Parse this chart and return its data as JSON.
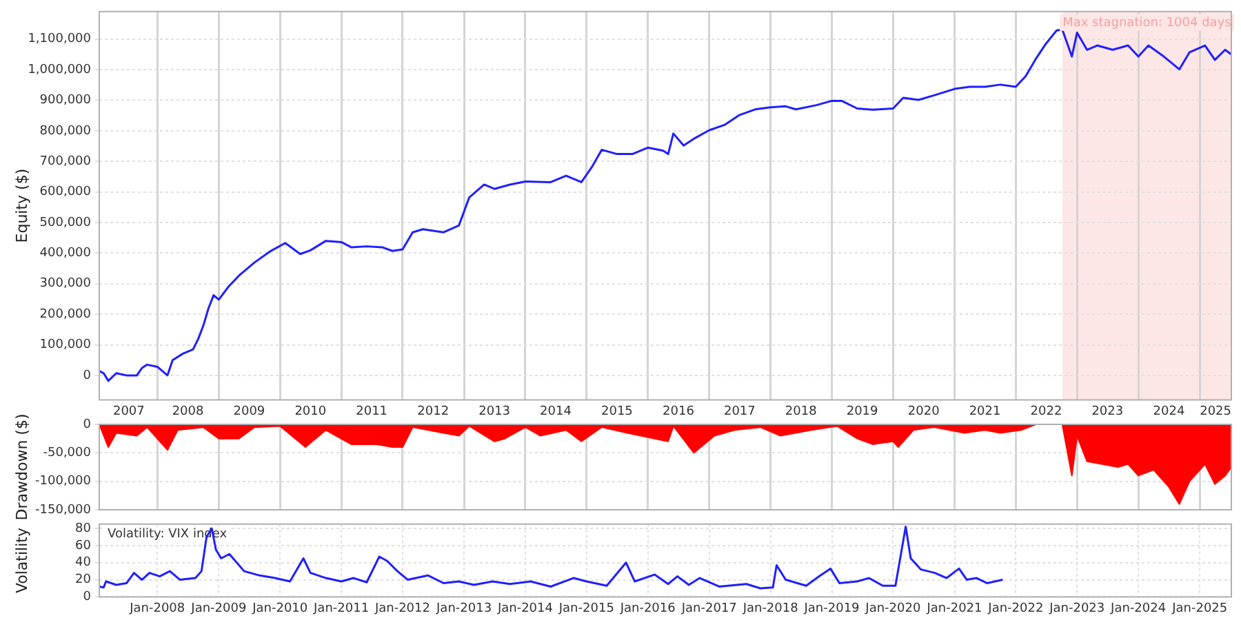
{
  "chart_data": [
    {
      "type": "line",
      "ylabel": "Equity ($)",
      "xlim": [
        "2007-01-20",
        "2025-07-08"
      ],
      "ylim": [
        -80000,
        1190000
      ],
      "yticks": [
        0,
        {
          "value": 100000,
          "label": "100,000"
        },
        {
          "value": 200000,
          "label": "200,000"
        },
        {
          "value": 300000,
          "label": "300,000"
        },
        {
          "value": 400000,
          "label": "400,000"
        },
        {
          "value": 500000,
          "label": "500,000"
        },
        {
          "value": 600000,
          "label": "600,000"
        },
        {
          "value": 700000,
          "label": "700,000"
        },
        {
          "value": 800000,
          "label": "800,000"
        },
        {
          "value": 900000,
          "label": "900,000"
        },
        {
          "value": 1000000,
          "label": "1,000,000"
        },
        {
          "value": 1100000,
          "label": "1,100,000"
        }
      ],
      "xticks": [
        {
          "value": "2007-07-15",
          "label": "2007"
        },
        {
          "value": "2008-01-01",
          "label": null
        },
        {
          "value": "2008-07-01",
          "label": "2008"
        },
        {
          "value": "2009-01-01",
          "label": null
        },
        {
          "value": "2009-07-01",
          "label": "2009"
        },
        {
          "value": "2010-01-01",
          "label": null
        },
        {
          "value": "2010-07-01",
          "label": "2010"
        },
        {
          "value": "2011-01-01",
          "label": null
        },
        {
          "value": "2011-07-01",
          "label": "2011"
        },
        {
          "value": "2012-01-01",
          "label": null
        },
        {
          "value": "2012-07-01",
          "label": "2012"
        },
        {
          "value": "2013-01-01",
          "label": null
        },
        {
          "value": "2013-07-01",
          "label": "2013"
        },
        {
          "value": "2014-01-01",
          "label": null
        },
        {
          "value": "2014-07-01",
          "label": "2014"
        },
        {
          "value": "2015-01-01",
          "label": null
        },
        {
          "value": "2015-07-01",
          "label": "2015"
        },
        {
          "value": "2016-01-01",
          "label": null
        },
        {
          "value": "2016-07-01",
          "label": "2016"
        },
        {
          "value": "2017-01-01",
          "label": null
        },
        {
          "value": "2017-07-01",
          "label": "2017"
        },
        {
          "value": "2018-01-01",
          "label": null
        },
        {
          "value": "2018-07-01",
          "label": "2018"
        },
        {
          "value": "2019-01-01",
          "label": null
        },
        {
          "value": "2019-07-01",
          "label": "2019"
        },
        {
          "value": "2020-01-01",
          "label": null
        },
        {
          "value": "2020-07-01",
          "label": "2020"
        },
        {
          "value": "2021-01-01",
          "label": null
        },
        {
          "value": "2021-07-01",
          "label": "2021"
        },
        {
          "value": "2022-01-01",
          "label": null
        },
        {
          "value": "2022-07-01",
          "label": "2022"
        },
        {
          "value": "2023-01-01",
          "label": null
        },
        {
          "value": "2023-07-01",
          "label": "2023"
        },
        {
          "value": "2024-01-01",
          "label": null
        },
        {
          "value": "2024-07-01",
          "label": "2024"
        },
        {
          "value": "2025-01-01",
          "label": null
        },
        {
          "value": "2025-04-05",
          "label": "2025"
        }
      ],
      "grid": true,
      "legend": false,
      "marker": "none",
      "line_style": "solid",
      "bands": [
        {
          "axis": "x",
          "from": "2022-10-05",
          "to": "2025-07-08",
          "label": "Max stagnation: 1004 days",
          "color": "#fde6e6"
        }
      ],
      "x": [
        "2007-01-20",
        "2007-02-15",
        "2007-03-15",
        "2007-05-01",
        "2007-07-01",
        "2007-09-01",
        "2007-10-01",
        "2007-11-01",
        "2008-01-01",
        "2008-03-01",
        "2008-04-01",
        "2008-06-01",
        "2008-08-01",
        "2008-09-01",
        "2008-10-01",
        "2008-11-01",
        "2008-12-01",
        "2009-01-01",
        "2009-03-01",
        "2009-05-01",
        "2009-08-01",
        "2009-11-01",
        "2010-02-01",
        "2010-05-01",
        "2010-07-01",
        "2010-10-01",
        "2011-01-01",
        "2011-03-01",
        "2011-06-01",
        "2011-09-01",
        "2011-11-01",
        "2012-01-01",
        "2012-03-01",
        "2012-05-01",
        "2012-09-01",
        "2012-12-01",
        "2013-02-01",
        "2013-05-01",
        "2013-07-01",
        "2013-10-01",
        "2014-01-01",
        "2014-06-01",
        "2014-09-01",
        "2014-12-01",
        "2015-02-01",
        "2015-04-01",
        "2015-07-01",
        "2015-10-01",
        "2016-01-01",
        "2016-04-01",
        "2016-05-01",
        "2016-06-01",
        "2016-08-01",
        "2016-10-01",
        "2017-01-01",
        "2017-04-01",
        "2017-07-01",
        "2017-10-01",
        "2018-01-01",
        "2018-04-01",
        "2018-06-01",
        "2018-10-01",
        "2019-01-01",
        "2019-03-01",
        "2019-06-01",
        "2019-09-01",
        "2020-01-01",
        "2020-03-01",
        "2020-06-01",
        "2020-09-01",
        "2021-01-01",
        "2021-04-01",
        "2021-07-01",
        "2021-10-01",
        "2022-01-01",
        "2022-03-01",
        "2022-05-01",
        "2022-07-01",
        "2022-09-01",
        "2022-10-05",
        "2022-12-01",
        "2023-01-01",
        "2023-03-01",
        "2023-05-01",
        "2023-08-01",
        "2023-11-01",
        "2024-01-01",
        "2024-03-01",
        "2024-06-01",
        "2024-09-01",
        "2024-11-01",
        "2025-02-01",
        "2025-04-01",
        "2025-06-01",
        "2025-07-08"
      ],
      "series": [
        {
          "color": "#1f1fff",
          "values": [
            14000,
            7000,
            -18000,
            7000,
            0,
            0,
            24000,
            35000,
            28000,
            0,
            50000,
            71000,
            85000,
            120000,
            163000,
            220000,
            262000,
            248000,
            291000,
            326000,
            369000,
            405000,
            433000,
            397000,
            409000,
            440000,
            436000,
            419000,
            422000,
            419000,
            407000,
            412000,
            468000,
            478000,
            468000,
            490000,
            582000,
            624000,
            610000,
            624000,
            634000,
            632000,
            653000,
            632000,
            681000,
            738000,
            724000,
            724000,
            745000,
            735000,
            724000,
            791000,
            752000,
            774000,
            802000,
            819000,
            852000,
            870000,
            877000,
            880000,
            870000,
            884000,
            898000,
            898000,
            873000,
            869000,
            873000,
            908000,
            901000,
            916000,
            937000,
            944000,
            944000,
            951000,
            944000,
            979000,
            1036000,
            1086000,
            1128000,
            1131000,
            1043000,
            1121000,
            1065000,
            1079000,
            1065000,
            1079000,
            1043000,
            1079000,
            1043000,
            1001000,
            1057000,
            1079000,
            1032000,
            1065000,
            1050000
          ]
        }
      ]
    },
    {
      "type": "area",
      "ylabel": "Drawdown ($)",
      "xlim": [
        "2007-01-20",
        "2025-07-08"
      ],
      "ylim": [
        -150000,
        0
      ],
      "yticks": [
        0,
        {
          "value": -50000,
          "label": "-50,000"
        },
        {
          "value": -100000,
          "label": "-100,000"
        },
        {
          "value": -150000,
          "label": "-150,000"
        }
      ],
      "xticks": [
        {
          "value": "2008-01-01",
          "label": null
        },
        {
          "value": "2009-01-01",
          "label": null
        },
        {
          "value": "2010-01-01",
          "label": null
        },
        {
          "value": "2011-01-01",
          "label": null
        },
        {
          "value": "2012-01-01",
          "label": null
        },
        {
          "value": "2013-01-01",
          "label": null
        },
        {
          "value": "2014-01-01",
          "label": null
        },
        {
          "value": "2015-01-01",
          "label": null
        },
        {
          "value": "2016-01-01",
          "label": null
        },
        {
          "value": "2017-01-01",
          "label": null
        },
        {
          "value": "2018-01-01",
          "label": null
        },
        {
          "value": "2019-01-01",
          "label": null
        },
        {
          "value": "2020-01-01",
          "label": null
        },
        {
          "value": "2021-01-01",
          "label": null
        },
        {
          "value": "2022-01-01",
          "label": null
        },
        {
          "value": "2023-01-01",
          "label": null
        },
        {
          "value": "2024-01-01",
          "label": null
        },
        {
          "value": "2025-01-01",
          "label": null
        }
      ],
      "tick_labels": "y",
      "grid": true,
      "legend": false,
      "x": [
        "2007-01-20",
        "2007-03-15",
        "2007-05-01",
        "2007-09-01",
        "2007-11-01",
        "2008-03-01",
        "2008-05-01",
        "2008-10-01",
        "2009-01-01",
        "2009-05-01",
        "2009-08-01",
        "2010-01-01",
        "2010-06-01",
        "2010-10-01",
        "2011-03-01",
        "2011-08-01",
        "2011-11-01",
        "2012-01-01",
        "2012-03-01",
        "2012-09-01",
        "2012-12-01",
        "2013-02-01",
        "2013-07-01",
        "2013-09-01",
        "2014-01-01",
        "2014-04-01",
        "2014-09-01",
        "2014-12-01",
        "2015-04-01",
        "2015-09-01",
        "2016-05-01",
        "2016-06-01",
        "2016-10-01",
        "2017-02-01",
        "2017-06-01",
        "2017-11-01",
        "2018-03-01",
        "2018-09-01",
        "2019-02-01",
        "2019-06-01",
        "2019-09-01",
        "2020-01-01",
        "2020-02-01",
        "2020-05-01",
        "2020-09-01",
        "2021-03-01",
        "2021-07-01",
        "2021-10-01",
        "2022-02-01",
        "2022-05-01",
        "2022-10-05",
        "2022-12-01",
        "2023-01-01",
        "2023-03-01",
        "2023-06-01",
        "2023-09-01",
        "2023-11-01",
        "2024-01-01",
        "2024-04-01",
        "2024-07-01",
        "2024-09-01",
        "2024-11-01",
        "2025-02-01",
        "2025-04-01",
        "2025-06-01",
        "2025-07-08"
      ],
      "series": [
        {
          "color": "#ff0000",
          "values": [
            0,
            -40000,
            -15000,
            -20000,
            -5000,
            -45000,
            -10000,
            -5000,
            -25000,
            -25000,
            -5000,
            -3000,
            -40000,
            -10000,
            -35000,
            -35000,
            -40000,
            -40000,
            -5000,
            -15000,
            -20000,
            -3000,
            -30000,
            -25000,
            -5000,
            -20000,
            -10000,
            -30000,
            -5000,
            -15000,
            -30000,
            -3000,
            -50000,
            -20000,
            -10000,
            -5000,
            -20000,
            -10000,
            -3000,
            -25000,
            -35000,
            -30000,
            -40000,
            -10000,
            -5000,
            -15000,
            -10000,
            -15000,
            -10000,
            0,
            0,
            -90000,
            -20000,
            -65000,
            -70000,
            -75000,
            -70000,
            -90000,
            -80000,
            -110000,
            -140000,
            -100000,
            -70000,
            -105000,
            -90000,
            -75000
          ]
        }
      ]
    },
    {
      "type": "line",
      "ylabel": "Volatility",
      "annotations": [
        "Volatility: VIX index"
      ],
      "xlim": [
        "2007-01-20",
        "2025-07-08"
      ],
      "ylim": [
        0,
        85
      ],
      "yticks": [
        0,
        20,
        40,
        60,
        80
      ],
      "xticks": [
        {
          "value": "2008-01-01",
          "label": "Jan-2008"
        },
        {
          "value": "2009-01-01",
          "label": "Jan-2009"
        },
        {
          "value": "2010-01-01",
          "label": "Jan-2010"
        },
        {
          "value": "2011-01-01",
          "label": "Jan-2011"
        },
        {
          "value": "2012-01-01",
          "label": "Jan-2012"
        },
        {
          "value": "2013-01-01",
          "label": "Jan-2013"
        },
        {
          "value": "2014-01-01",
          "label": "Jan-2014"
        },
        {
          "value": "2015-01-01",
          "label": "Jan-2015"
        },
        {
          "value": "2016-01-01",
          "label": "Jan-2016"
        },
        {
          "value": "2017-01-01",
          "label": "Jan-2017"
        },
        {
          "value": "2018-01-01",
          "label": "Jan-2018"
        },
        {
          "value": "2019-01-01",
          "label": "Jan-2019"
        },
        {
          "value": "2020-01-01",
          "label": "Jan-2020"
        },
        {
          "value": "2021-01-01",
          "label": "Jan-2021"
        },
        {
          "value": "2022-01-01",
          "label": "Jan-2022"
        },
        {
          "value": "2023-01-01",
          "label": "Jan-2023"
        },
        {
          "value": "2024-01-01",
          "label": "Jan-2024"
        },
        {
          "value": "2025-01-01",
          "label": "Jan-2025"
        }
      ],
      "grid": true,
      "legend": false,
      "marker": "none",
      "line_style": "solid",
      "x": [
        "2007-01-20",
        "2007-02-15",
        "2007-03-01",
        "2007-05-01",
        "2007-07-01",
        "2007-08-15",
        "2007-10-01",
        "2007-11-15",
        "2008-01-15",
        "2008-03-15",
        "2008-05-15",
        "2008-08-15",
        "2008-09-20",
        "2008-10-20",
        "2008-11-20",
        "2008-12-15",
        "2009-01-15",
        "2009-03-05",
        "2009-06-01",
        "2009-09-01",
        "2009-12-01",
        "2010-03-01",
        "2010-05-20",
        "2010-07-01",
        "2010-10-01",
        "2011-01-01",
        "2011-03-15",
        "2011-06-01",
        "2011-08-15",
        "2011-10-01",
        "2011-12-01",
        "2012-02-01",
        "2012-06-01",
        "2012-09-01",
        "2012-12-01",
        "2013-03-01",
        "2013-06-20",
        "2013-10-01",
        "2014-02-01",
        "2014-06-01",
        "2014-10-15",
        "2015-01-01",
        "2015-05-01",
        "2015-08-24",
        "2015-10-15",
        "2016-02-10",
        "2016-05-01",
        "2016-06-25",
        "2016-09-01",
        "2016-11-05",
        "2017-03-01",
        "2017-08-10",
        "2017-11-01",
        "2018-01-15",
        "2018-02-06",
        "2018-04-01",
        "2018-08-01",
        "2018-10-25",
        "2018-12-24",
        "2019-02-15",
        "2019-06-01",
        "2019-08-10",
        "2019-11-01",
        "2020-01-15",
        "2020-03-16",
        "2020-04-15",
        "2020-06-15",
        "2020-09-05",
        "2020-11-15",
        "2021-01-28",
        "2021-03-15",
        "2021-05-12",
        "2021-07-15",
        "2021-10-15"
      ],
      "series": [
        {
          "color": "#1f1fff",
          "values": [
            12,
            11,
            18,
            14,
            16,
            28,
            20,
            28,
            24,
            30,
            20,
            22,
            30,
            70,
            80,
            55,
            45,
            50,
            30,
            25,
            22,
            18,
            45,
            28,
            22,
            18,
            22,
            17,
            47,
            42,
            30,
            20,
            25,
            16,
            18,
            14,
            18,
            15,
            18,
            12,
            22,
            18,
            13,
            40,
            18,
            26,
            15,
            24,
            14,
            22,
            12,
            15,
            10,
            11,
            37,
            20,
            13,
            25,
            33,
            16,
            18,
            22,
            13,
            13,
            82,
            45,
            32,
            28,
            22,
            33,
            20,
            22,
            16,
            20
          ]
        }
      ]
    }
  ]
}
